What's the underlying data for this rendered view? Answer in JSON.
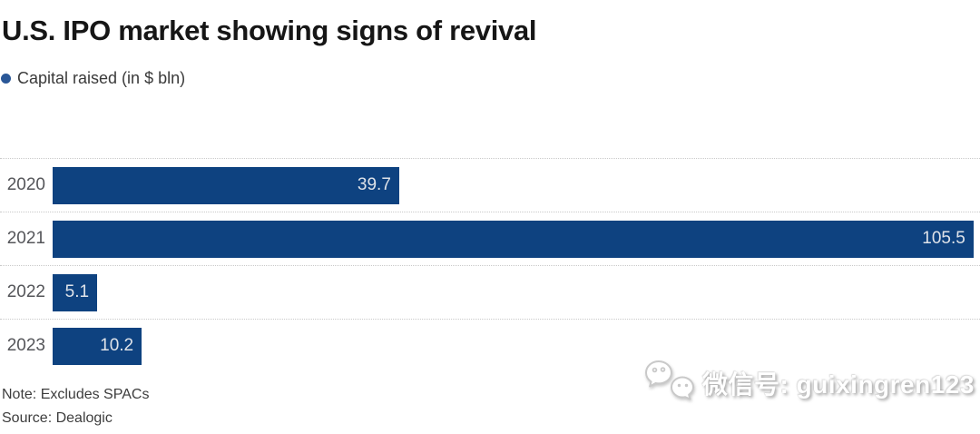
{
  "title": "U.S. IPO market showing signs of revival",
  "legend": {
    "label": "Capital raised (in $ bln)",
    "dot_color": "#2a5797"
  },
  "chart_data": {
    "type": "bar",
    "orientation": "horizontal",
    "title": "U.S. IPO market showing signs of revival",
    "series_name": "Capital raised (in $ bln)",
    "categories": [
      "2020",
      "2021",
      "2022",
      "2023"
    ],
    "values": [
      39.7,
      105.5,
      5.1,
      10.2
    ],
    "value_labels": [
      "39.7",
      "105.5",
      "5.1",
      "10.2"
    ],
    "xlabel": "",
    "ylabel": "",
    "xlim": [
      0,
      106.3
    ],
    "grid": "dotted horizontal separators above each row",
    "legend_position": "top-left",
    "value_label_position": "inside-right"
  },
  "footer": {
    "note": "Note: Excludes SPACs",
    "source": "Source: Dealogic"
  },
  "watermark": {
    "icon": "wechat-icon",
    "text": "微信号: guixingren123"
  },
  "colors": {
    "bar": "#0e4280",
    "legend_dot": "#2a5797",
    "value_label": "#dfe3e9",
    "year_label": "#55565a",
    "title_text": "#161616",
    "note_text": "#3d3d3d",
    "gridline": "#c9c9c9",
    "background": "#ffffff",
    "watermark_text": "#ffffff"
  }
}
